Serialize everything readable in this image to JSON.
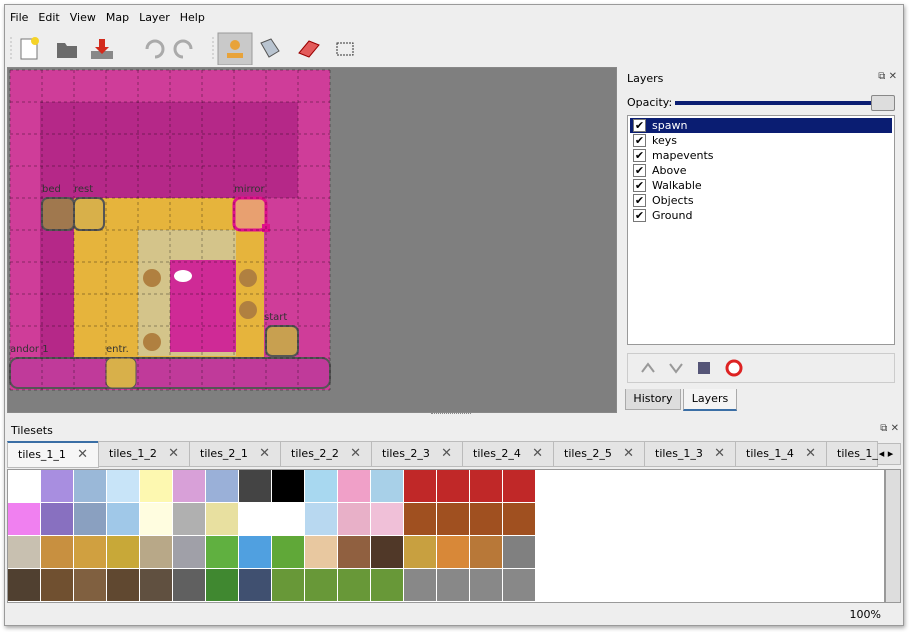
{
  "menu": [
    "File",
    "Edit",
    "View",
    "Map",
    "Layer",
    "Help"
  ],
  "map_objects": [
    "bed",
    "rest",
    "mirror",
    "start",
    "andor 1",
    "entr."
  ],
  "layers_panel": {
    "title": "Layers",
    "opacity_label": "Opacity:",
    "layers": [
      "spawn",
      "keys",
      "mapevents",
      "Above",
      "Walkable",
      "Objects",
      "Ground"
    ],
    "tabs": [
      "History",
      "Layers"
    ]
  },
  "tilesets_panel": {
    "title": "Tilesets",
    "tabs": [
      "tiles_1_1",
      "tiles_1_2",
      "tiles_2_1",
      "tiles_2_2",
      "tiles_2_3",
      "tiles_2_4",
      "tiles_2_5",
      "tiles_1_3",
      "tiles_1_4",
      "tiles_1_"
    ]
  },
  "status": {
    "zoom": "100%"
  }
}
